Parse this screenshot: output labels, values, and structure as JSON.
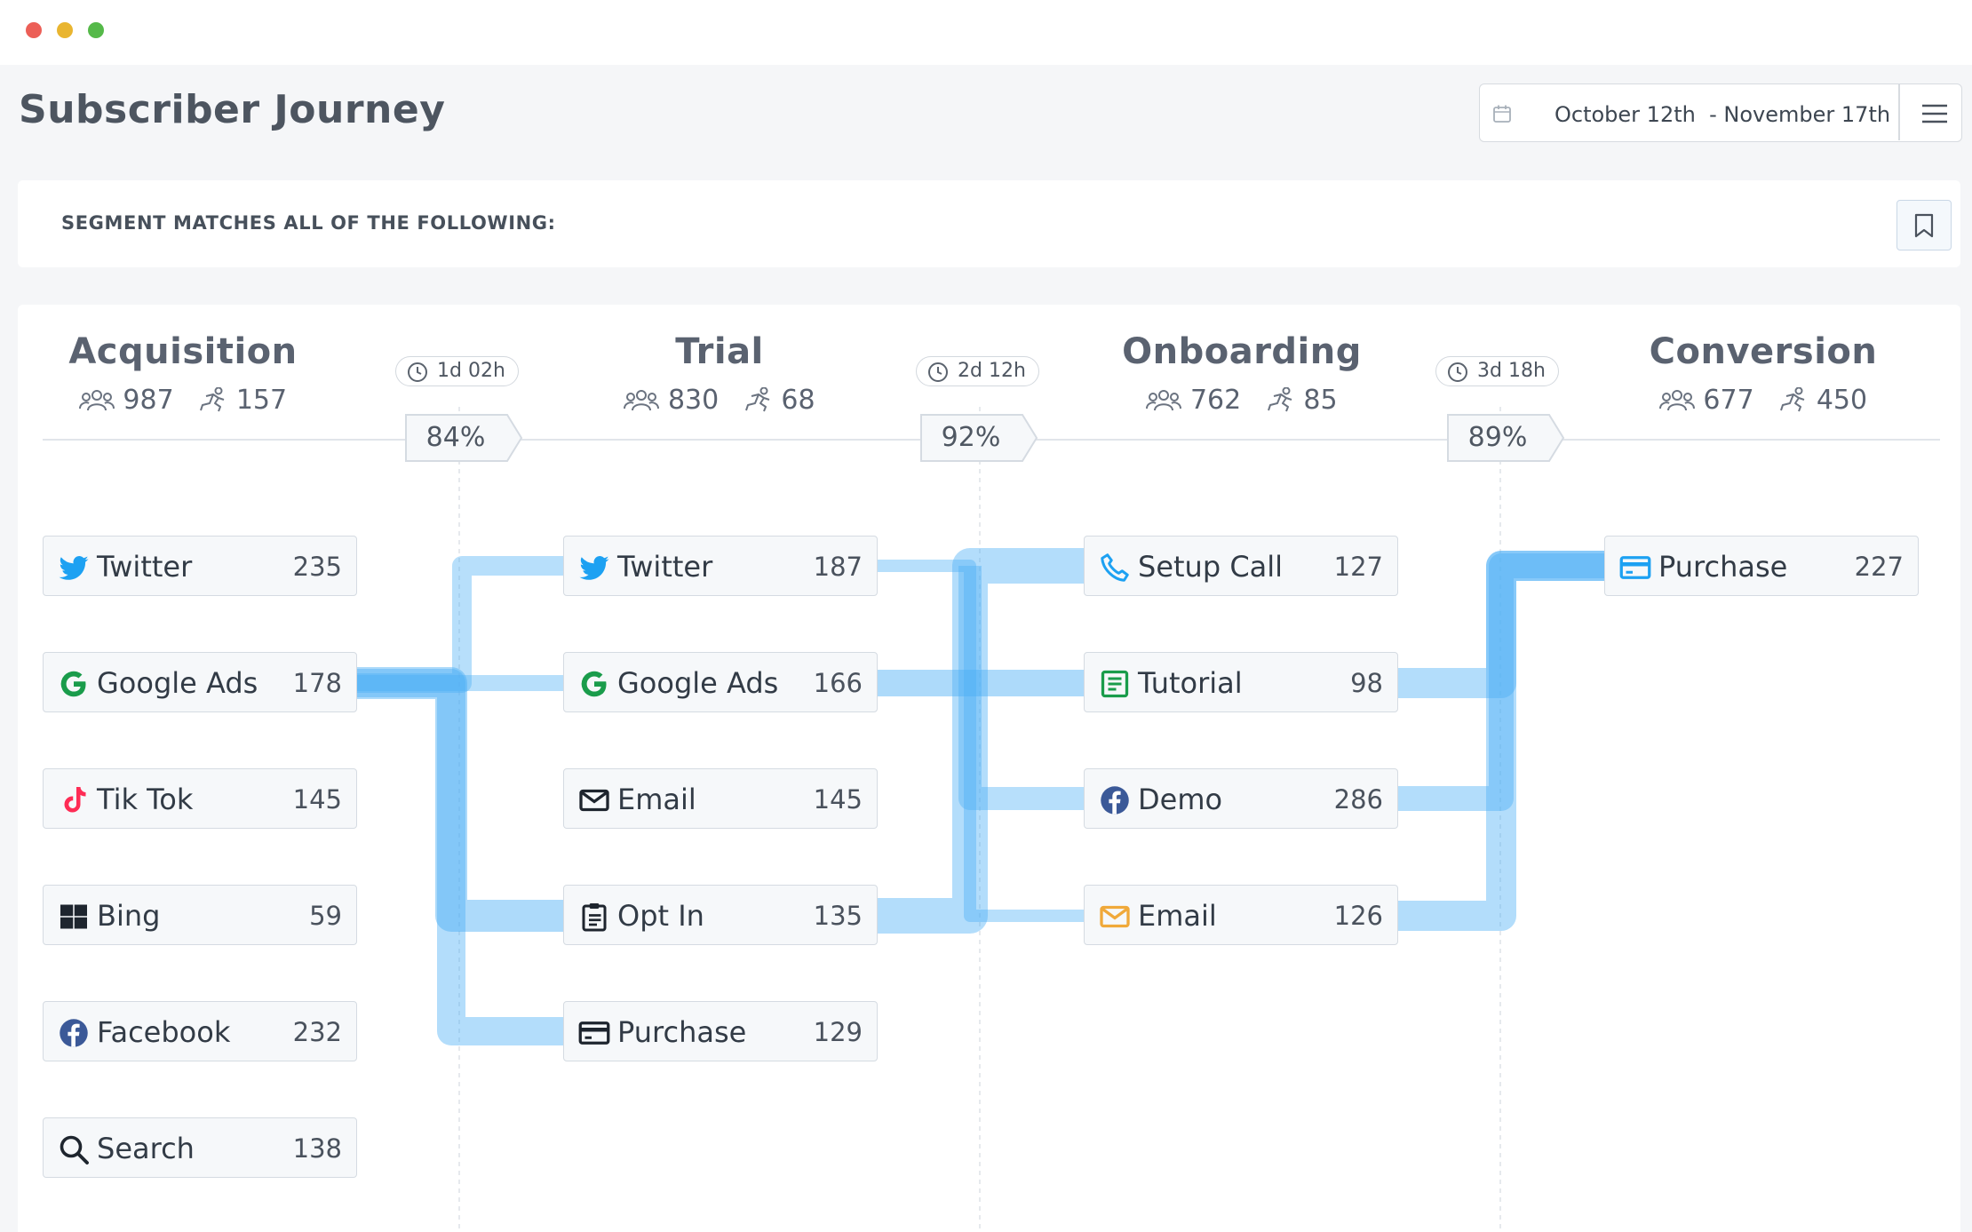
{
  "app": {
    "title": "Subscriber Journey"
  },
  "window": {
    "controls": [
      "close",
      "minimize",
      "maximize"
    ],
    "colors": {
      "close": "#ec5f57",
      "minimize": "#e9b530",
      "maximize": "#55b949"
    }
  },
  "header": {
    "date_start": "October 12th",
    "date_end": "November 17th",
    "date_separator": "-",
    "calendar_icon": "calendar-icon",
    "menu_icon": "hamburger-menu-icon"
  },
  "segment": {
    "label": "SEGMENT MATCHES ALL OF THE FOLLOWING:",
    "bookmark_icon": "bookmark-icon"
  },
  "colors": {
    "flow": "#4aaef5",
    "text": "#323b46",
    "accent_twitter": "#1da1f2",
    "accent_google": "#1a9c4b",
    "accent_tiktok": "#fe2c55",
    "accent_facebook": "#3b5998",
    "accent_email": "#f0a93a"
  },
  "stages": [
    {
      "name": "Acquisition",
      "users": "987",
      "converted": "157"
    },
    {
      "name": "Trial",
      "users": "830",
      "converted": "68"
    },
    {
      "name": "Onboarding",
      "users": "762",
      "converted": "85"
    },
    {
      "name": "Conversion",
      "users": "677",
      "converted": "450"
    }
  ],
  "transitions": [
    {
      "time": "1d 02h",
      "percent": "84%"
    },
    {
      "time": "2d 12h",
      "percent": "92%"
    },
    {
      "time": "3d 18h",
      "percent": "89%"
    }
  ],
  "columns": [
    {
      "stage": "Acquisition",
      "nodes": [
        {
          "label": "Twitter",
          "count": "235",
          "icon": "twitter-icon"
        },
        {
          "label": "Google Ads",
          "count": "178",
          "icon": "google-icon"
        },
        {
          "label": "Tik Tok",
          "count": "145",
          "icon": "tiktok-icon"
        },
        {
          "label": "Bing",
          "count": "59",
          "icon": "windows-icon"
        },
        {
          "label": "Facebook",
          "count": "232",
          "icon": "facebook-icon"
        },
        {
          "label": "Search",
          "count": "138",
          "icon": "search-icon"
        }
      ]
    },
    {
      "stage": "Trial",
      "nodes": [
        {
          "label": "Twitter",
          "count": "187",
          "icon": "twitter-icon"
        },
        {
          "label": "Google Ads",
          "count": "166",
          "icon": "google-icon"
        },
        {
          "label": "Email",
          "count": "145",
          "icon": "envelope-icon"
        },
        {
          "label": "Opt In",
          "count": "135",
          "icon": "clipboard-icon"
        },
        {
          "label": "Purchase",
          "count": "129",
          "icon": "credit-card-icon"
        }
      ]
    },
    {
      "stage": "Onboarding",
      "nodes": [
        {
          "label": "Setup Call",
          "count": "127",
          "icon": "phone-icon"
        },
        {
          "label": "Tutorial",
          "count": "98",
          "icon": "document-icon"
        },
        {
          "label": "Demo",
          "count": "286",
          "icon": "facebook-icon"
        },
        {
          "label": "Email",
          "count": "126",
          "icon": "envelope-icon"
        }
      ]
    },
    {
      "stage": "Conversion",
      "nodes": [
        {
          "label": "Purchase",
          "count": "227",
          "icon": "credit-card-icon"
        }
      ]
    }
  ]
}
